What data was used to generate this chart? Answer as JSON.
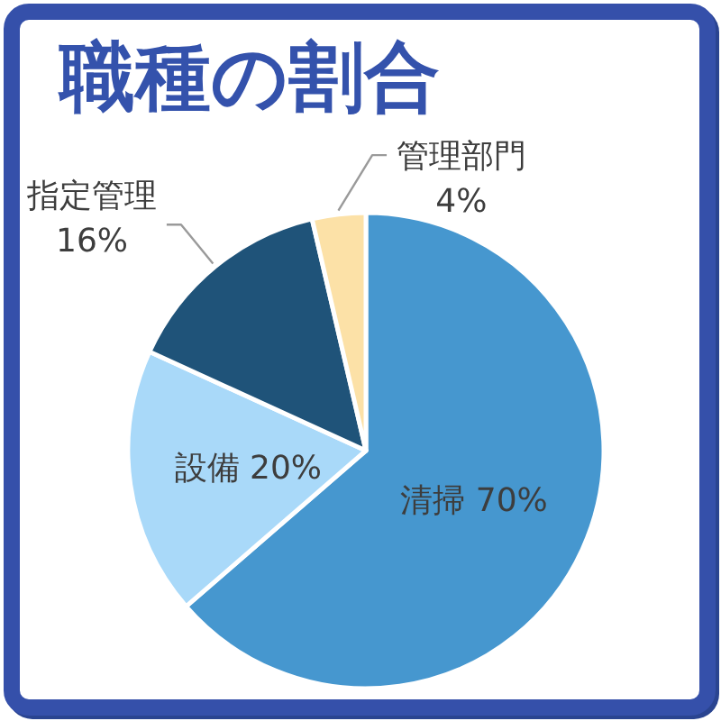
{
  "chart_data": {
    "type": "pie",
    "title": "職種の割合",
    "categories": [
      "清掃",
      "設備",
      "指定管理",
      "管理部門"
    ],
    "values": [
      70,
      20,
      16,
      4
    ],
    "value_labels": [
      "70%",
      "20%",
      "16%",
      "4%"
    ],
    "colors": [
      "#4697cf",
      "#a9d9f9",
      "#1f5379",
      "#fce1a7"
    ]
  }
}
